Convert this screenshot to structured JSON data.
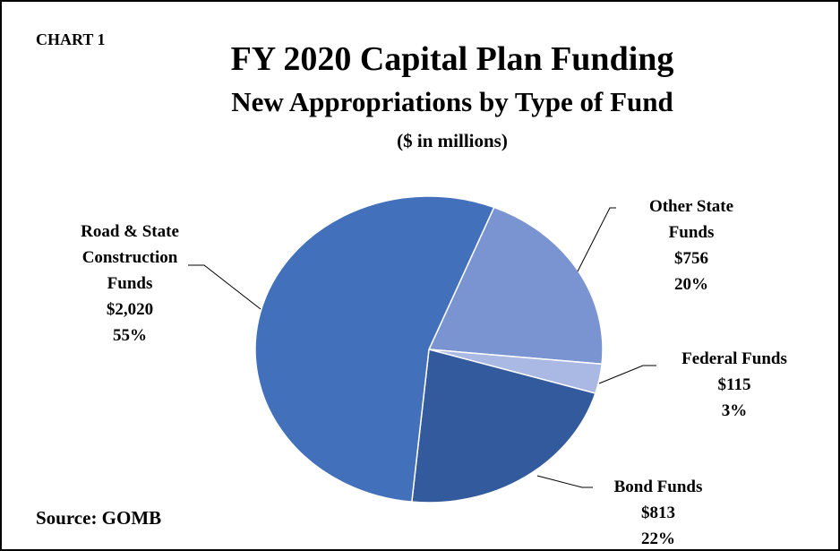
{
  "chart_data": {
    "type": "pie",
    "label": "CHART 1",
    "title": "FY 2020 Capital Plan Funding",
    "subtitle": "New Appropriations by Type of Fund",
    "units": "($ in millions)",
    "source": "Source: GOMB",
    "categories": [
      "Other State Funds",
      "Federal Funds",
      "Bond Funds",
      "Road & State Construction Funds"
    ],
    "values": [
      756,
      115,
      813,
      2020
    ],
    "value_labels": [
      "$756",
      "$115",
      "$813",
      "$2,020"
    ],
    "percentages": [
      20,
      3,
      22,
      55
    ],
    "percentage_labels": [
      "20%",
      "3%",
      "22%",
      "55%"
    ],
    "colors": [
      "#7a93d1",
      "#a9b9e3",
      "#335a9c",
      "#4270bb"
    ]
  }
}
